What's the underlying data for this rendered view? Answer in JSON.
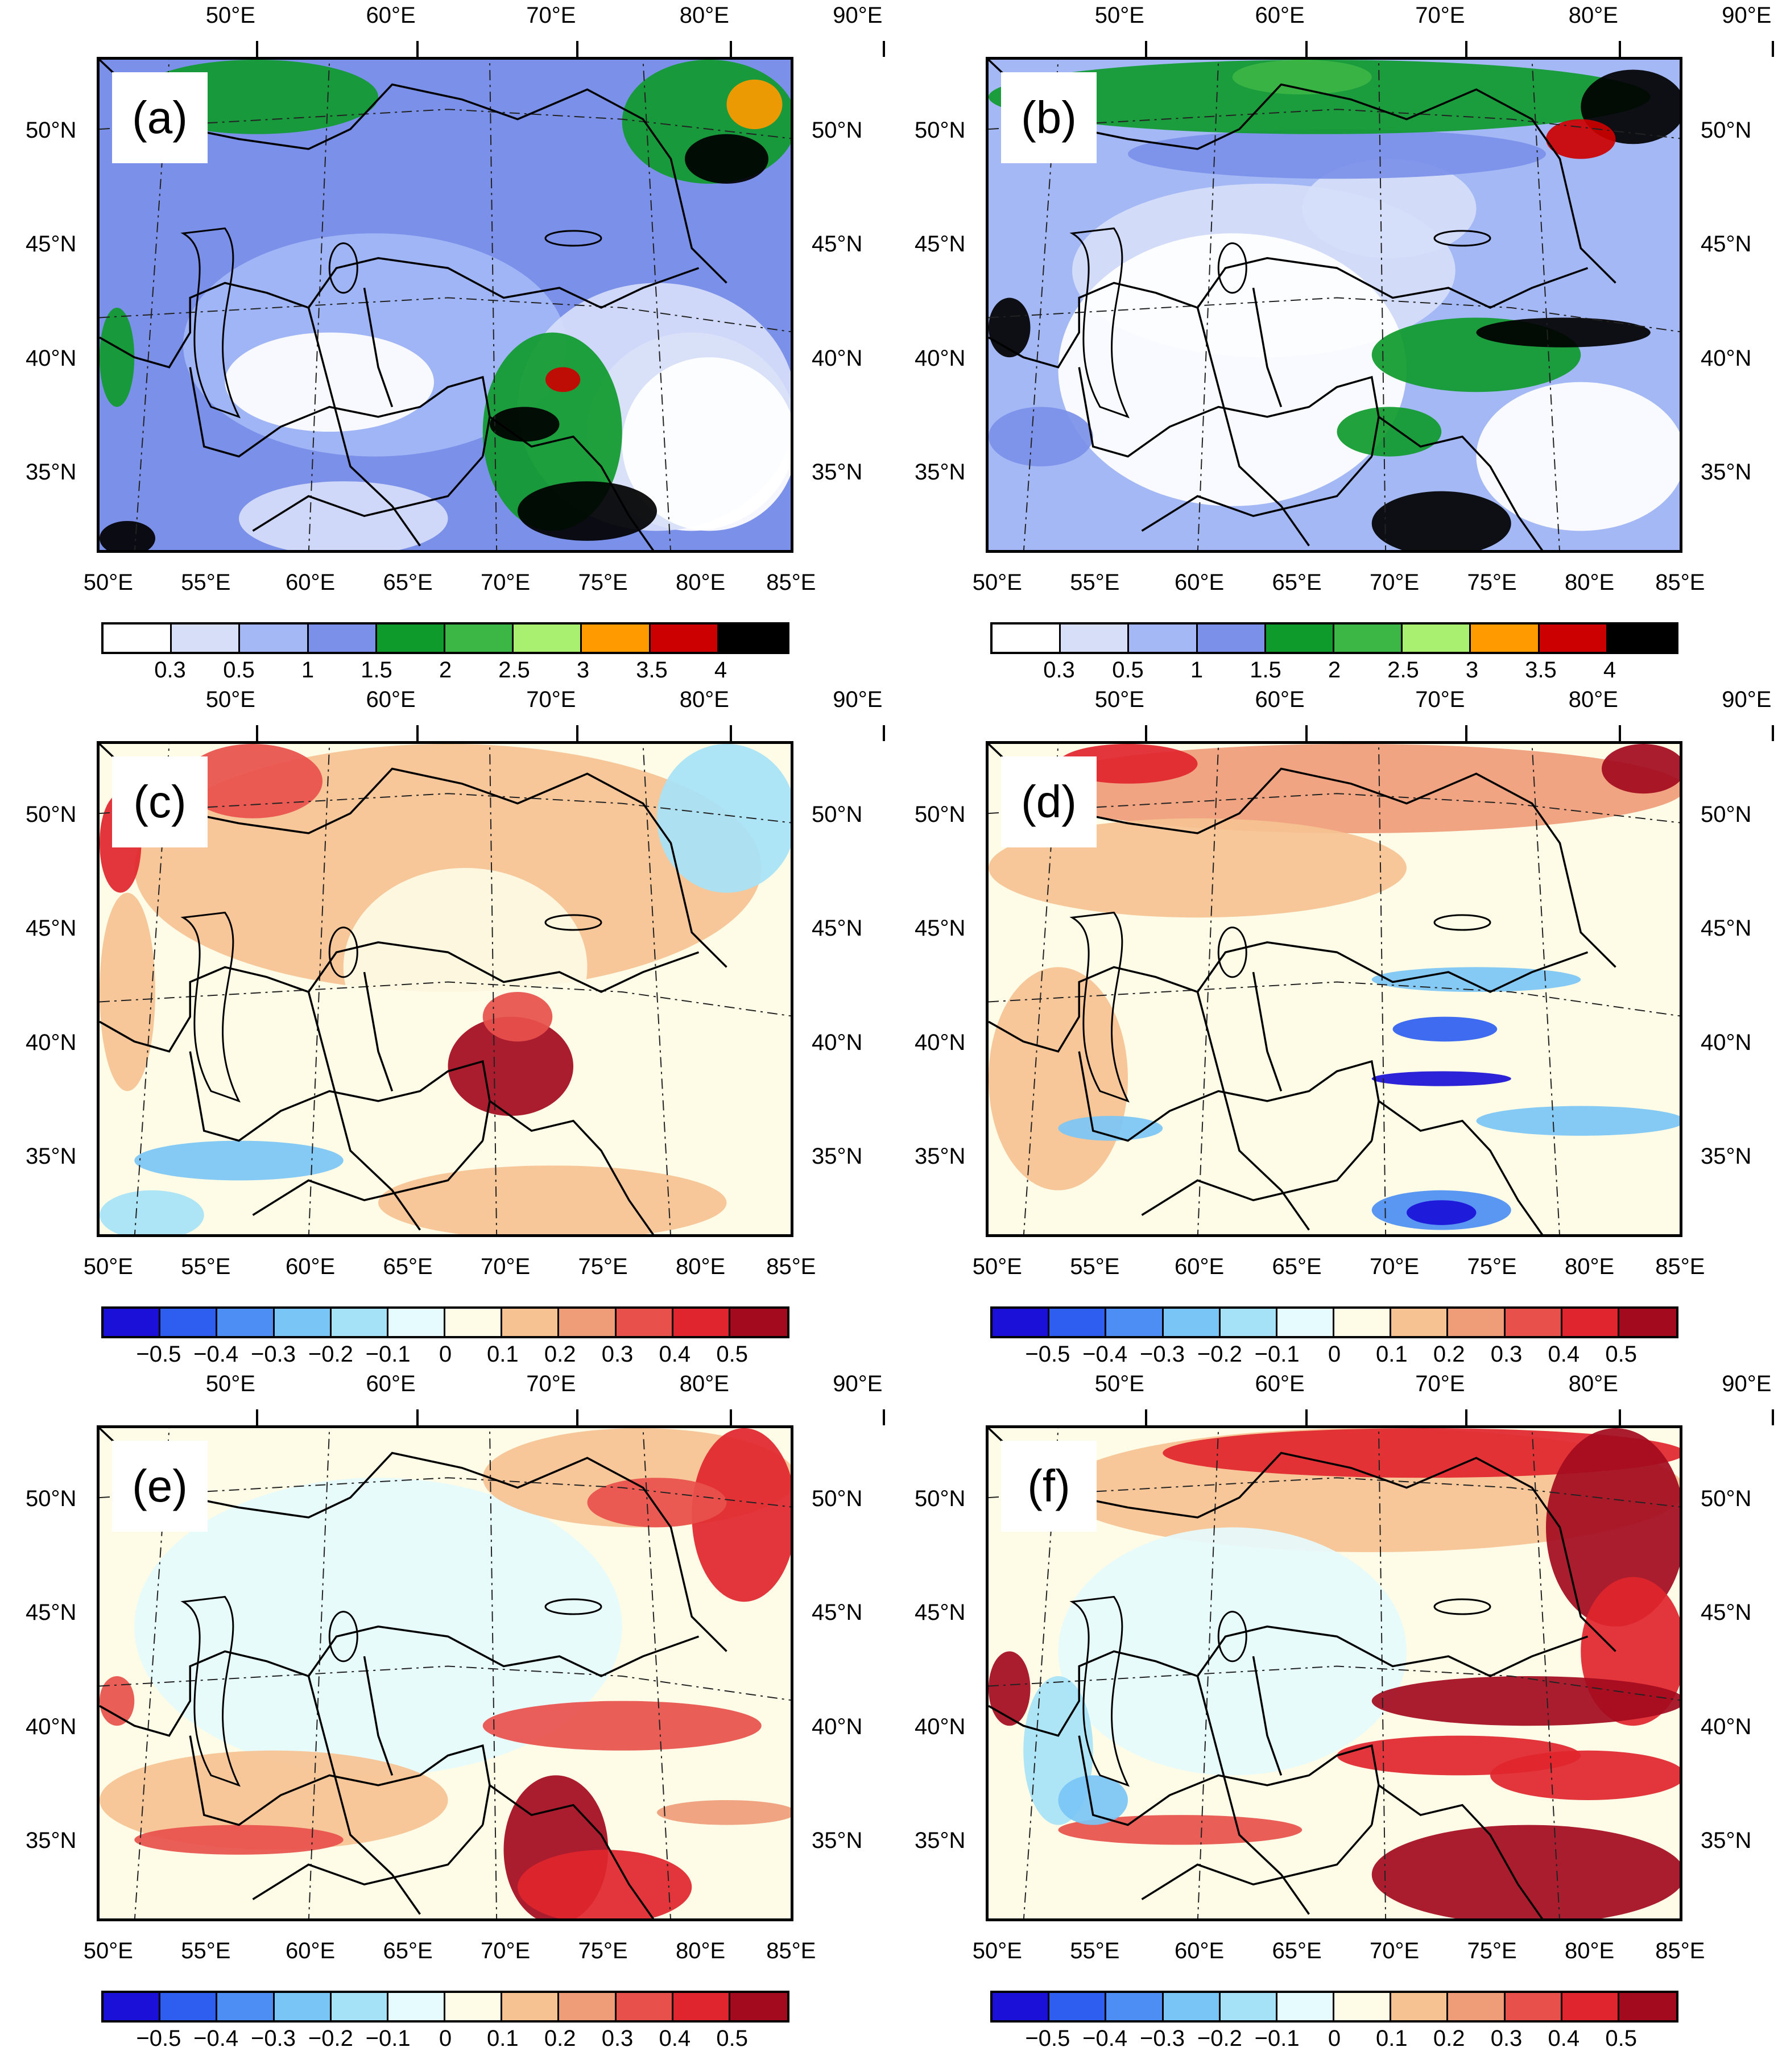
{
  "figure": {
    "top_lon_labels": [
      "50°E",
      "60°E",
      "70°E",
      "80°E",
      "90°E"
    ],
    "bottom_lon_labels": [
      "50°E",
      "55°E",
      "60°E",
      "65°E",
      "70°E",
      "75°E",
      "80°E",
      "85°E"
    ],
    "lat_labels": [
      "50°N",
      "45°N",
      "40°N",
      "35°N"
    ]
  },
  "panels": [
    {
      "label": "(a)",
      "type": "precip"
    },
    {
      "label": "(b)",
      "type": "precip"
    },
    {
      "label": "(c)",
      "type": "diff"
    },
    {
      "label": "(d)",
      "type": "diff"
    },
    {
      "label": "(e)",
      "type": "diff"
    },
    {
      "label": "(f)",
      "type": "diff"
    }
  ],
  "colorbars": {
    "precip": {
      "colors": [
        "#ffffff",
        "#d6def8",
        "#a3b8f5",
        "#7b90e8",
        "#0f9a2c",
        "#3cb644",
        "#aaf070",
        "#ff9a00",
        "#cc0000",
        "#000000"
      ],
      "labels": [
        "0.3",
        "0.5",
        "1",
        "1.5",
        "2",
        "2.5",
        "3",
        "3.5",
        "4"
      ]
    },
    "diff": {
      "colors": [
        "#1a10d8",
        "#2e5ef0",
        "#4c8ef3",
        "#79c6f6",
        "#a6e2f7",
        "#e6fbfd",
        "#fefbe6",
        "#f6c292",
        "#ef9c78",
        "#e8504c",
        "#e1252e",
        "#a30a1e"
      ],
      "labels": [
        "−0.5",
        "−0.4",
        "−0.3",
        "−0.2",
        "−0.1",
        "0",
        "0.1",
        "0.2",
        "0.3",
        "0.4",
        "0.5"
      ]
    }
  }
}
